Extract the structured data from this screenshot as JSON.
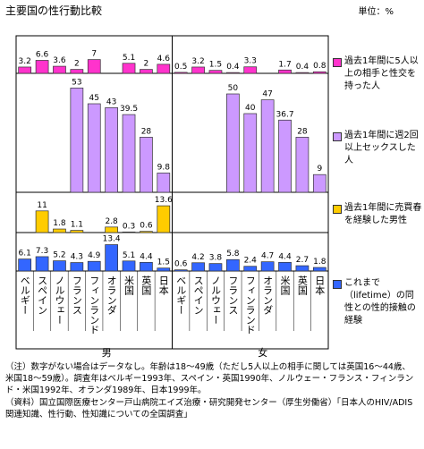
{
  "title": "主要国の性行動比較",
  "unit": "単位：%",
  "chart_data": {
    "type": "bar",
    "categories": [
      "ベルギー",
      "スペイン",
      "ノルウェー",
      "フランス",
      "フィンランド",
      "オランダ",
      "米国",
      "英国",
      "日本",
      "ベルギー",
      "スペイン",
      "ノルウェー",
      "フランス",
      "フィンランド",
      "オランダ",
      "米国",
      "英国",
      "日本"
    ],
    "groups": [
      "男",
      "女"
    ],
    "series": [
      {
        "name": "過去1年間に5人以上の相手と性交を持った人",
        "color": "#ff33cc",
        "values": [
          3.2,
          6.6,
          3.6,
          2.0,
          7.0,
          null,
          5.1,
          2.0,
          4.6,
          0.5,
          3.2,
          1.5,
          0.4,
          3.3,
          null,
          1.7,
          0.4,
          0.8
        ]
      },
      {
        "name": "過去1年間に週2回以上セックスした人",
        "color": "#cc99ff",
        "values": [
          null,
          null,
          null,
          53,
          45,
          43,
          39.5,
          28,
          9.8,
          null,
          null,
          null,
          50,
          40,
          47,
          36.7,
          28,
          9.0
        ]
      },
      {
        "name": "過去1年間に売買春を経験した男性",
        "color": "#ffcc00",
        "values": [
          null,
          11.0,
          1.8,
          1.1,
          null,
          2.8,
          0.3,
          0.6,
          13.6,
          null,
          null,
          null,
          null,
          null,
          null,
          null,
          null,
          null
        ]
      },
      {
        "name": "これまで（lifetime）の同性との性的接触の経験",
        "color": "#3366ff",
        "values": [
          6.1,
          7.3,
          5.2,
          4.3,
          4.9,
          13.4,
          5.1,
          4.4,
          1.5,
          0.6,
          4.2,
          3.8,
          5.8,
          2.4,
          4.7,
          4.4,
          2.7,
          1.8
        ]
      }
    ]
  },
  "notes": [
    "（注）数字がない場合はデータなし。年齢は18～49歳（ただし5人以上の相手に関しては英国16～44歳、米国18～59歳）。調査年はベルギー1993年、スペイン・英国1990年、ノルウェー・フランス・フィンランド・米国1992年、オランダ1989年、日本1999年。",
    "（資料）国立国際医療センター戸山病院エイズ治療・研究開発センター（厚生労働省）「日本人のHIV/ADIS関連知識、性行動、性知識についての全国調査」"
  ]
}
